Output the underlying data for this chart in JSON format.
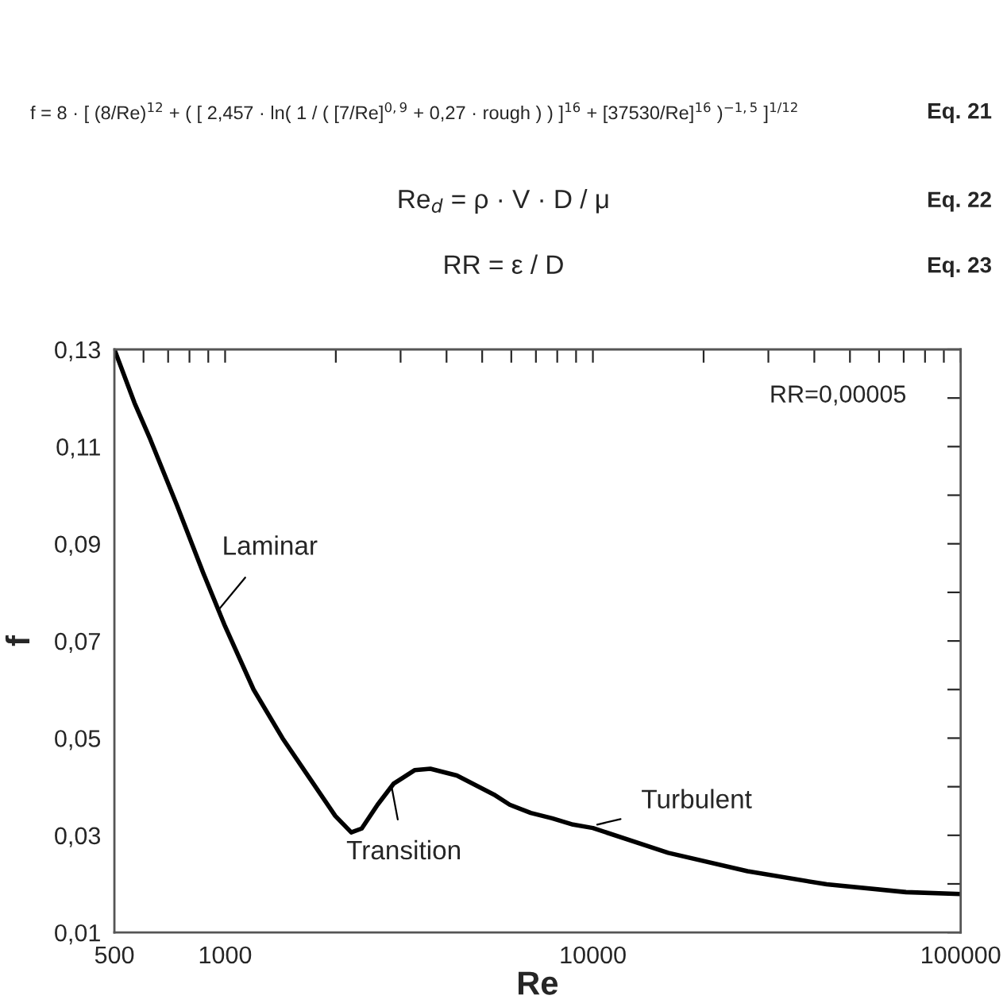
{
  "chart_data": {
    "type": "line",
    "xlabel": "Re",
    "ylabel": "f",
    "log": "x",
    "grid": false,
    "legend": false,
    "marker": "none",
    "line_style": "solid",
    "series": [
      {
        "color": "#000000",
        "x": [
          500,
          567,
          626,
          739,
          872,
          1000,
          1195,
          1432,
          1689,
          1993,
          2203,
          2352,
          2598,
          2870,
          3274,
          3615,
          4267,
          5378,
          5939,
          6777,
          7745,
          8831,
          10000,
          16025,
          26330,
          43230,
          71000,
          100000
        ],
        "values": [
          0.13,
          0.119,
          0.1115,
          0.098,
          0.084,
          0.073,
          0.06,
          0.05,
          0.042,
          0.034,
          0.0306,
          0.0314,
          0.0363,
          0.0406,
          0.0434,
          0.0437,
          0.0423,
          0.0384,
          0.0363,
          0.0346,
          0.0335,
          0.0322,
          0.0315,
          0.0264,
          0.0226,
          0.0199,
          0.0183,
          0.0179
        ]
      }
    ],
    "xlim": [
      500,
      100000
    ],
    "xticks": [
      500,
      {
        "value": 600,
        "label": null
      },
      {
        "value": 700,
        "label": null
      },
      {
        "value": 800,
        "label": null
      },
      {
        "value": 900,
        "label": null
      },
      1000,
      {
        "value": 2000,
        "label": null
      },
      {
        "value": 3000,
        "label": null
      },
      {
        "value": 4000,
        "label": null
      },
      {
        "value": 5000,
        "label": null
      },
      {
        "value": 6000,
        "label": null
      },
      {
        "value": 7000,
        "label": null
      },
      {
        "value": 8000,
        "label": null
      },
      {
        "value": 9000,
        "label": null
      },
      10000,
      {
        "value": 20000,
        "label": null
      },
      {
        "value": 30000,
        "label": null
      },
      {
        "value": 40000,
        "label": null
      },
      {
        "value": 50000,
        "label": null
      },
      {
        "value": 60000,
        "label": null
      },
      {
        "value": 70000,
        "label": null
      },
      {
        "value": 80000,
        "label": null
      },
      {
        "value": 90000,
        "label": null
      },
      100000
    ],
    "ylim": [
      0.01,
      0.13
    ],
    "yticks": [
      {
        "value": 0.01,
        "label": "0,01"
      },
      {
        "value": 0.02,
        "label": null
      },
      {
        "value": 0.03,
        "label": "0,03"
      },
      {
        "value": 0.04,
        "label": null
      },
      {
        "value": 0.05,
        "label": "0,05"
      },
      {
        "value": 0.06,
        "label": null
      },
      {
        "value": 0.07,
        "label": "0,07"
      },
      {
        "value": 0.08,
        "label": null
      },
      {
        "value": 0.09,
        "label": "0,09"
      },
      {
        "value": 0.1,
        "label": null
      },
      {
        "value": 0.11,
        "label": "0,11"
      },
      {
        "value": 0.12,
        "label": null
      },
      {
        "value": 0.13,
        "label": "0,13"
      }
    ],
    "annotations": [
      "f = 8 · [ (8/Re)$^{12}$ + ( [ 2,457 · ln( 1 / ( [7/Re]$^{0,9}$ + 0,27 · rough ) ) ]$^{16}$ + [37530/Re]$^{16}$ )$^{−1,5}$ ]$^{1/12}$",
      "Eq. 21",
      "Re$_{d}$ = ρ · V · D / μ",
      "Eq. 22",
      "RR = ε / D",
      "Eq. 23",
      "RR=0,00005",
      {
        "text": "Laminar",
        "x": 950,
        "y": 0.076
      },
      {
        "text": "Transition",
        "x": 2820,
        "y": 0.041
      },
      {
        "text": "Turbulent",
        "x": 10000,
        "y": 0.032
      }
    ]
  }
}
